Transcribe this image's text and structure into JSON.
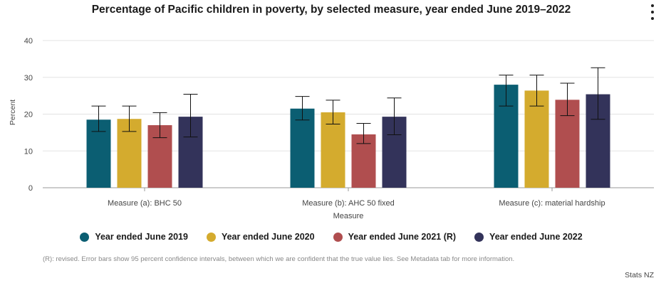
{
  "chart_data": {
    "type": "bar",
    "title": "Percentage of Pacific children in poverty, by selected measure, year ended June 2019–2022",
    "xlabel": "Measure",
    "ylabel": "Percent",
    "ylim": [
      0,
      40
    ],
    "yticks": [
      0,
      10,
      20,
      30,
      40
    ],
    "grid": true,
    "legend_position": "bottom",
    "categories": [
      "Measure (a): BHC 50",
      "Measure (b): AHC 50 fixed",
      "Measure (c): material hardship"
    ],
    "series": [
      {
        "name": "Year ended June 2019",
        "color": "#0b5e72",
        "values": [
          18.5,
          21.5,
          28.0
        ],
        "lower": [
          15.3,
          18.4,
          22.2
        ],
        "upper": [
          22.2,
          24.8,
          30.6
        ]
      },
      {
        "name": "Year ended June 2020",
        "color": "#d4ab2e",
        "values": [
          18.7,
          20.5,
          26.4
        ],
        "lower": [
          15.3,
          17.3,
          22.2
        ],
        "upper": [
          22.2,
          23.8,
          30.6
        ]
      },
      {
        "name": "Year ended June 2021 (R)",
        "color": "#b04e4f",
        "values": [
          17.0,
          14.5,
          23.9
        ],
        "lower": [
          13.6,
          12.0,
          19.6
        ],
        "upper": [
          20.4,
          17.5,
          28.4
        ]
      },
      {
        "name": "Year ended June 2022",
        "color": "#33335a",
        "values": [
          19.3,
          19.3,
          25.4
        ],
        "lower": [
          13.8,
          14.4,
          18.6
        ],
        "upper": [
          25.4,
          24.4,
          32.6
        ]
      }
    ]
  },
  "footnote": "(R): revised. Error bars show 95 percent confidence intervals, between which we are confident that the true value lies. See Metadata tab for more information.",
  "source": "Stats NZ",
  "menu_icon": "vertical-ellipsis-icon"
}
